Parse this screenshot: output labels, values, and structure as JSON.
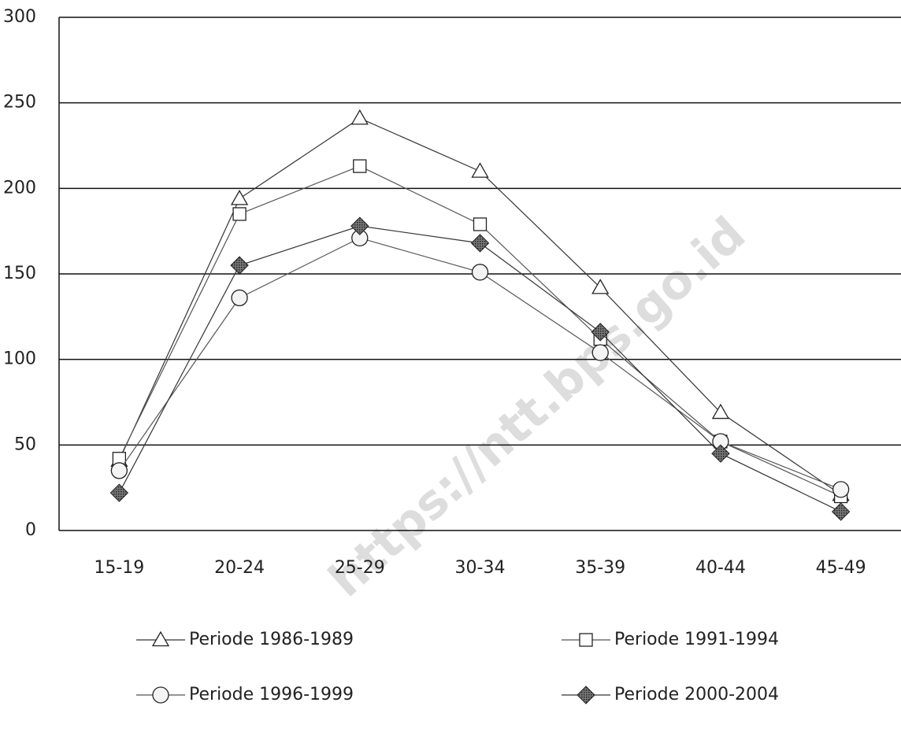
{
  "chart_data": {
    "type": "line",
    "categories": [
      "15-19",
      "20-24",
      "25-29",
      "30-34",
      "35-39",
      "40-44",
      "45-49"
    ],
    "series": [
      {
        "name": "Periode 1986-1989",
        "color": "#333333",
        "marker": "triangle",
        "values": [
          41,
          194,
          241,
          210,
          142,
          69,
          21
        ]
      },
      {
        "name": "Periode 1991-1994",
        "color": "#555555",
        "marker": "square",
        "values": [
          42,
          185,
          213,
          179,
          112,
          52,
          20
        ]
      },
      {
        "name": "Periode 1996-1999",
        "color": "#555555",
        "marker": "circle",
        "values": [
          35,
          136,
          171,
          151,
          104,
          52,
          24
        ]
      },
      {
        "name": "Periode 2000-2004",
        "color": "#333333",
        "marker": "diamond",
        "values": [
          22,
          155,
          178,
          168,
          116,
          45,
          11
        ]
      }
    ],
    "ylim": [
      0,
      300
    ],
    "yticks": [
      0,
      50,
      100,
      150,
      200,
      250,
      300
    ],
    "grid": true,
    "watermark": "https://ntt.bps.go.id"
  }
}
